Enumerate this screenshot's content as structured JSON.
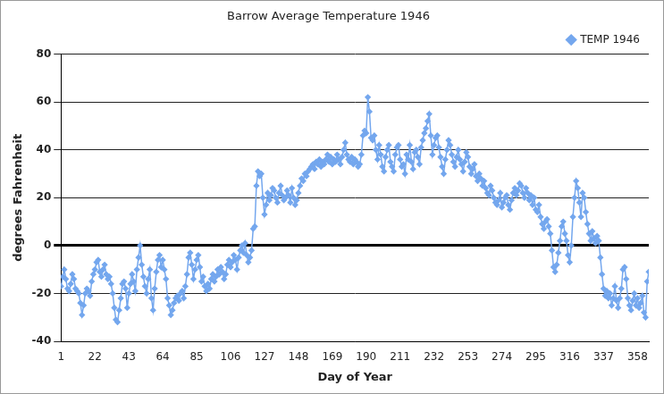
{
  "chart_data": {
    "type": "line",
    "title": "Barrow Average Temperature 1946",
    "xlabel": "Day of Year",
    "ylabel": "degrees Fahrenheit",
    "xlim": [
      1,
      365
    ],
    "xticks": [
      1,
      22,
      43,
      64,
      85,
      106,
      127,
      148,
      169,
      190,
      211,
      232,
      253,
      274,
      295,
      316,
      337,
      358
    ],
    "ylim": [
      -40,
      80
    ],
    "yticks": [
      -40,
      -20,
      0,
      20,
      40,
      60,
      80
    ],
    "grid": true,
    "legend": "top-right",
    "x": [
      1,
      2,
      3,
      4,
      5,
      6,
      7,
      8,
      9,
      10,
      11,
      12,
      13,
      14,
      15,
      16,
      17,
      18,
      19,
      20,
      21,
      22,
      23,
      24,
      25,
      26,
      27,
      28,
      29,
      30,
      31,
      32,
      33,
      34,
      35,
      36,
      37,
      38,
      39,
      40,
      41,
      42,
      43,
      44,
      45,
      46,
      47,
      48,
      49,
      50,
      51,
      52,
      53,
      54,
      55,
      56,
      57,
      58,
      59,
      60,
      61,
      62,
      63,
      64,
      65,
      66,
      67,
      68,
      69,
      70,
      71,
      72,
      73,
      74,
      75,
      76,
      77,
      78,
      79,
      80,
      81,
      82,
      83,
      84,
      85,
      86,
      87,
      88,
      89,
      90,
      91,
      92,
      93,
      94,
      95,
      96,
      97,
      98,
      99,
      100,
      101,
      102,
      103,
      104,
      105,
      106,
      107,
      108,
      109,
      110,
      111,
      112,
      113,
      114,
      115,
      116,
      117,
      118,
      119,
      120,
      121,
      122,
      123,
      124,
      125,
      126,
      127,
      128,
      129,
      130,
      131,
      132,
      133,
      134,
      135,
      136,
      137,
      138,
      139,
      140,
      141,
      142,
      143,
      144,
      145,
      146,
      147,
      148,
      149,
      150,
      151,
      152,
      153,
      154,
      155,
      156,
      157,
      158,
      159,
      160,
      161,
      162,
      163,
      164,
      165,
      166,
      167,
      168,
      169,
      170,
      171,
      172,
      173,
      174,
      175,
      176,
      177,
      178,
      179,
      180,
      181,
      182,
      183,
      184,
      185,
      186,
      187,
      188,
      189,
      190,
      191,
      192,
      193,
      194,
      195,
      196,
      197,
      198,
      199,
      200,
      201,
      202,
      203,
      204,
      205,
      206,
      207,
      208,
      209,
      210,
      211,
      212,
      213,
      214,
      215,
      216,
      217,
      218,
      219,
      220,
      221,
      222,
      223,
      224,
      225,
      226,
      227,
      228,
      229,
      230,
      231,
      232,
      233,
      234,
      235,
      236,
      237,
      238,
      239,
      240,
      241,
      242,
      243,
      244,
      245,
      246,
      247,
      248,
      249,
      250,
      251,
      252,
      253,
      254,
      255,
      256,
      257,
      258,
      259,
      260,
      261,
      262,
      263,
      264,
      265,
      266,
      267,
      268,
      269,
      270,
      271,
      272,
      273,
      274,
      275,
      276,
      277,
      278,
      279,
      280,
      281,
      282,
      283,
      284,
      285,
      286,
      287,
      288,
      289,
      290,
      291,
      292,
      293,
      294,
      295,
      296,
      297,
      298,
      299,
      300,
      301,
      302,
      303,
      304,
      305,
      306,
      307,
      308,
      309,
      310,
      311,
      312,
      313,
      314,
      315,
      316,
      317,
      318,
      319,
      320,
      321,
      322,
      323,
      324,
      325,
      326,
      327,
      328,
      329,
      330,
      331,
      332,
      333,
      334,
      335,
      336,
      337,
      338,
      339,
      340,
      341,
      342,
      343,
      344,
      345,
      346,
      347,
      348,
      349,
      350,
      351,
      352,
      353,
      354,
      355,
      356,
      357,
      358,
      359,
      360,
      361,
      362,
      363,
      364,
      365
    ],
    "series": [
      {
        "name": "TEMP 1946",
        "color": "#74a7ee",
        "marker": "diamond",
        "line_style": "solid",
        "values": [
          -17,
          -13,
          -10,
          -14,
          -18,
          -19,
          -16,
          -12,
          -14,
          -18,
          -19,
          -20,
          -24,
          -29,
          -25,
          -20,
          -18,
          -19,
          -21,
          -15,
          -12,
          -10,
          -7,
          -6,
          -11,
          -13,
          -10,
          -8,
          -12,
          -14,
          -13,
          -16,
          -20,
          -26,
          -31,
          -32,
          -27,
          -22,
          -16,
          -15,
          -18,
          -26,
          -20,
          -16,
          -12,
          -15,
          -19,
          -10,
          -5,
          0,
          -8,
          -13,
          -17,
          -20,
          -14,
          -10,
          -22,
          -27,
          -18,
          -11,
          -6,
          -4,
          -9,
          -6,
          -10,
          -14,
          -22,
          -25,
          -29,
          -27,
          -24,
          -22,
          -21,
          -23,
          -20,
          -19,
          -22,
          -17,
          -12,
          -5,
          -3,
          -8,
          -14,
          -10,
          -6,
          -4,
          -9,
          -15,
          -13,
          -17,
          -19,
          -16,
          -18,
          -14,
          -12,
          -15,
          -13,
          -10,
          -12,
          -9,
          -11,
          -14,
          -12,
          -8,
          -6,
          -9,
          -7,
          -4,
          -6,
          -10,
          -5,
          -2,
          0,
          -3,
          1,
          -4,
          -7,
          -5,
          -2,
          7,
          8,
          25,
          31,
          29,
          30,
          20,
          13,
          17,
          22,
          19,
          21,
          24,
          23,
          20,
          18,
          22,
          25,
          21,
          19,
          20,
          23,
          21,
          18,
          24,
          20,
          17,
          19,
          22,
          25,
          28,
          27,
          30,
          29,
          31,
          32,
          33,
          34,
          32,
          35,
          34,
          36,
          33,
          35,
          34,
          36,
          38,
          35,
          37,
          34,
          36,
          35,
          38,
          36,
          34,
          37,
          40,
          43,
          38,
          36,
          35,
          37,
          34,
          36,
          35,
          33,
          34,
          38,
          46,
          48,
          47,
          62,
          56,
          45,
          44,
          46,
          40,
          36,
          42,
          38,
          33,
          31,
          37,
          40,
          42,
          35,
          33,
          31,
          38,
          41,
          42,
          36,
          33,
          34,
          30,
          38,
          36,
          42,
          35,
          32,
          39,
          40,
          37,
          34,
          41,
          44,
          47,
          49,
          52,
          55,
          46,
          38,
          42,
          45,
          46,
          41,
          37,
          33,
          30,
          36,
          40,
          44,
          42,
          38,
          35,
          33,
          37,
          40,
          36,
          34,
          31,
          35,
          39,
          37,
          33,
          30,
          32,
          34,
          29,
          27,
          30,
          28,
          25,
          27,
          24,
          22,
          21,
          25,
          23,
          20,
          18,
          17,
          19,
          22,
          16,
          18,
          20,
          21,
          17,
          15,
          19,
          22,
          24,
          21,
          23,
          26,
          25,
          22,
          20,
          24,
          22,
          19,
          21,
          17,
          20,
          15,
          14,
          17,
          12,
          9,
          7,
          10,
          11,
          8,
          5,
          -2,
          -9,
          -11,
          -8,
          -3,
          2,
          8,
          10,
          5,
          2,
          -4,
          -7,
          0,
          12,
          20,
          27,
          24,
          18,
          12,
          22,
          20,
          14,
          9,
          5,
          2,
          6,
          3,
          1,
          4,
          2,
          -5,
          -12,
          -18,
          -21,
          -19,
          -22,
          -20,
          -25,
          -22,
          -17,
          -23,
          -26,
          -22,
          -18,
          -10,
          -9,
          -14,
          -22,
          -25,
          -27,
          -23,
          -20,
          -25,
          -22,
          -26,
          -24,
          -21,
          -28,
          -30,
          -15,
          -11
        ]
      }
    ]
  }
}
